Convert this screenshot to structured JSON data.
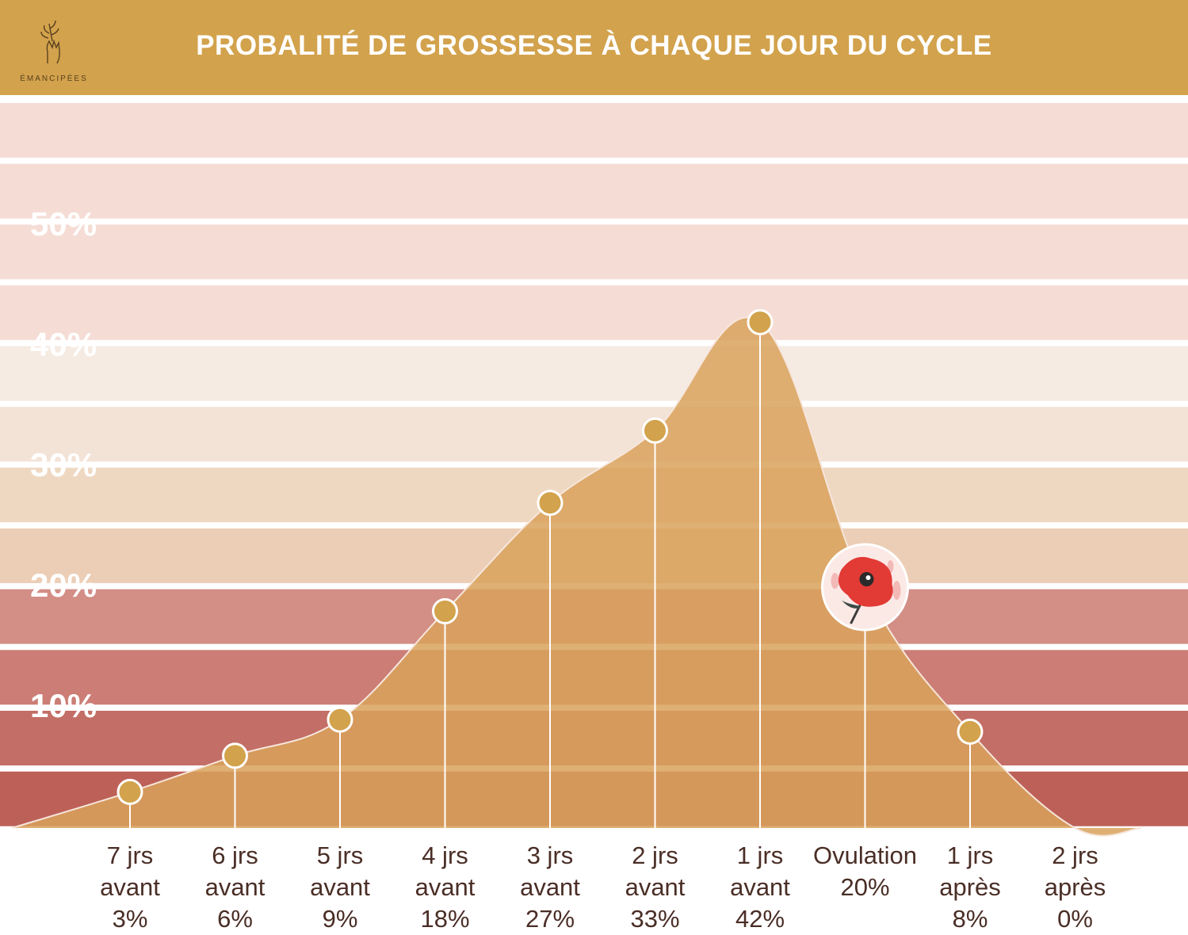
{
  "header": {
    "title": "PROBALITÉ DE GROSSESSE À CHAQUE JOUR DU CYCLE",
    "logo_text": "ÉMANCIPÉES"
  },
  "colors": {
    "header_bg": "#d2a24c",
    "area_fill": "#d9a25c",
    "point_fill": "#d2a24c",
    "bands": [
      "#f5ddd6",
      "#f5ddd6",
      "#f5ddd6",
      "#f5ddd6",
      "#f5ebe2",
      "#f3e2d6",
      "#efd8c2",
      "#ecceb6",
      "#d38e86",
      "#cb7d76",
      "#c36e66",
      "#bd6158"
    ]
  },
  "chart_data": {
    "type": "area",
    "title": "PROBALITÉ DE GROSSESSE À CHAQUE JOUR DU CYCLE",
    "xlabel": "",
    "ylabel": "",
    "ylim": [
      0,
      60
    ],
    "yticks": [
      {
        "value": 50,
        "label": "50%"
      },
      {
        "value": 40,
        "label": "40%"
      },
      {
        "value": 30,
        "label": "30%"
      },
      {
        "value": 20,
        "label": "20%"
      },
      {
        "value": 10,
        "label": "10%"
      }
    ],
    "grid": true,
    "categories": [
      [
        "7 jrs",
        "avant",
        "3%"
      ],
      [
        "6 jrs",
        "avant",
        "6%"
      ],
      [
        "5 jrs",
        "avant",
        "9%"
      ],
      [
        "4 jrs",
        "avant",
        "18%"
      ],
      [
        "3 jrs",
        "avant",
        "27%"
      ],
      [
        "2 jrs",
        "avant",
        "33%"
      ],
      [
        "1 jrs",
        "avant",
        "42%"
      ],
      [
        "Ovulation",
        "20%"
      ],
      [
        "1 jrs",
        "après",
        "8%"
      ],
      [
        "2 jrs",
        "après",
        "0%"
      ]
    ],
    "values": [
      3,
      6,
      9,
      18,
      27,
      33,
      42,
      20,
      8,
      0
    ],
    "highlight": {
      "category_index": 7,
      "icon": "flower-icon"
    }
  }
}
